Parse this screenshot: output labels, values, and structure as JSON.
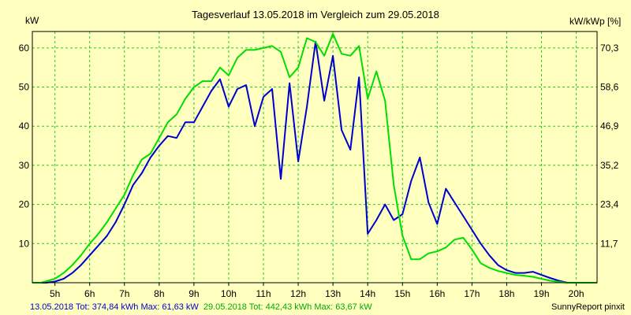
{
  "chart_data": {
    "type": "line",
    "title": "Tagesverlauf 13.05.2018 im Vergleich zum 29.05.2018",
    "ylabel_left": "kW",
    "ylabel_right": "kW/kWp [%]",
    "x_ticks": [
      "5h",
      "6h",
      "7h",
      "8h",
      "9h",
      "10h",
      "11h",
      "12h",
      "13h",
      "14h",
      "15h",
      "16h",
      "17h",
      "18h",
      "19h",
      "20h"
    ],
    "xlim": [
      4.35,
      20.6
    ],
    "ylim": [
      0,
      64.2
    ],
    "y_ticks_left": [
      10,
      20,
      30,
      40,
      50,
      60
    ],
    "y_ticks_right": [
      "11,7",
      "23,4",
      "35,2",
      "46,9",
      "58,6",
      "70,3"
    ],
    "grid": true,
    "series": [
      {
        "name": "13.05.2018",
        "color": "#0000cc",
        "summary": "13.05.2018 Tot: 374,84 kWh Max: 61,63 kW",
        "points": [
          [
            4.35,
            0
          ],
          [
            4.75,
            0
          ],
          [
            5.0,
            0.3
          ],
          [
            5.25,
            1.0
          ],
          [
            5.5,
            2.5
          ],
          [
            5.75,
            4.5
          ],
          [
            6.0,
            7.0
          ],
          [
            6.25,
            9.5
          ],
          [
            6.5,
            12.0
          ],
          [
            6.75,
            15.5
          ],
          [
            7.0,
            20.0
          ],
          [
            7.25,
            25.0
          ],
          [
            7.5,
            28.0
          ],
          [
            7.75,
            32.0
          ],
          [
            8.0,
            35.0
          ],
          [
            8.25,
            37.5
          ],
          [
            8.5,
            37.0
          ],
          [
            8.75,
            41.0
          ],
          [
            9.0,
            41.0
          ],
          [
            9.25,
            45.0
          ],
          [
            9.5,
            49.0
          ],
          [
            9.75,
            52.0
          ],
          [
            10.0,
            45.0
          ],
          [
            10.25,
            49.5
          ],
          [
            10.5,
            50.5
          ],
          [
            10.75,
            40.0
          ],
          [
            11.0,
            47.5
          ],
          [
            11.25,
            49.5
          ],
          [
            11.5,
            26.5
          ],
          [
            11.75,
            51.0
          ],
          [
            12.0,
            31.0
          ],
          [
            12.25,
            45.0
          ],
          [
            12.5,
            61.6
          ],
          [
            12.75,
            46.5
          ],
          [
            13.0,
            58.0
          ],
          [
            13.25,
            39.0
          ],
          [
            13.5,
            34.0
          ],
          [
            13.75,
            52.5
          ],
          [
            14.0,
            12.5
          ],
          [
            14.25,
            16.0
          ],
          [
            14.5,
            20.0
          ],
          [
            14.75,
            16.0
          ],
          [
            15.0,
            17.5
          ],
          [
            15.25,
            26.0
          ],
          [
            15.5,
            32.0
          ],
          [
            15.75,
            20.5
          ],
          [
            16.0,
            15.0
          ],
          [
            16.25,
            24.0
          ],
          [
            16.5,
            20.5
          ],
          [
            16.75,
            17.0
          ],
          [
            17.0,
            13.5
          ],
          [
            17.25,
            10.0
          ],
          [
            17.5,
            7.0
          ],
          [
            17.75,
            4.5
          ],
          [
            18.0,
            3.2
          ],
          [
            18.25,
            2.5
          ],
          [
            18.5,
            2.5
          ],
          [
            18.75,
            2.8
          ],
          [
            19.0,
            2.0
          ],
          [
            19.25,
            1.2
          ],
          [
            19.5,
            0.5
          ],
          [
            19.75,
            0
          ],
          [
            20.6,
            0
          ]
        ]
      },
      {
        "name": "29.05.2018",
        "color": "#00dd00",
        "summary": "29.05.2018 Tot: 442,43 kWh Max: 63,67 kW",
        "points": [
          [
            4.35,
            0
          ],
          [
            4.6,
            0
          ],
          [
            5.0,
            1.0
          ],
          [
            5.25,
            2.5
          ],
          [
            5.5,
            4.5
          ],
          [
            5.75,
            7.0
          ],
          [
            6.0,
            10.0
          ],
          [
            6.25,
            12.5
          ],
          [
            6.5,
            15.5
          ],
          [
            6.75,
            19.0
          ],
          [
            7.0,
            22.5
          ],
          [
            7.25,
            27.5
          ],
          [
            7.5,
            31.5
          ],
          [
            7.75,
            33.0
          ],
          [
            8.0,
            37.0
          ],
          [
            8.25,
            41.0
          ],
          [
            8.5,
            43.0
          ],
          [
            8.75,
            47.0
          ],
          [
            9.0,
            50.0
          ],
          [
            9.25,
            51.5
          ],
          [
            9.5,
            51.5
          ],
          [
            9.75,
            55.0
          ],
          [
            10.0,
            53.0
          ],
          [
            10.25,
            57.5
          ],
          [
            10.5,
            59.5
          ],
          [
            10.75,
            59.5
          ],
          [
            11.0,
            60.0
          ],
          [
            11.25,
            60.5
          ],
          [
            11.5,
            59.0
          ],
          [
            11.75,
            52.5
          ],
          [
            12.0,
            55.0
          ],
          [
            12.25,
            62.5
          ],
          [
            12.5,
            61.5
          ],
          [
            12.75,
            58.0
          ],
          [
            13.0,
            63.6
          ],
          [
            13.25,
            58.5
          ],
          [
            13.5,
            58.0
          ],
          [
            13.75,
            60.5
          ],
          [
            14.0,
            47.0
          ],
          [
            14.25,
            54.0
          ],
          [
            14.5,
            46.5
          ],
          [
            14.75,
            25.0
          ],
          [
            15.0,
            12.0
          ],
          [
            15.25,
            6.0
          ],
          [
            15.5,
            6.0
          ],
          [
            15.75,
            7.5
          ],
          [
            16.0,
            8.0
          ],
          [
            16.25,
            9.0
          ],
          [
            16.5,
            11.0
          ],
          [
            16.75,
            11.5
          ],
          [
            17.0,
            8.5
          ],
          [
            17.25,
            5.0
          ],
          [
            17.5,
            3.8
          ],
          [
            17.75,
            3.0
          ],
          [
            18.0,
            2.5
          ],
          [
            18.25,
            2.0
          ],
          [
            18.5,
            1.8
          ],
          [
            18.75,
            1.5
          ],
          [
            19.0,
            1.0
          ],
          [
            19.25,
            0.5
          ],
          [
            19.5,
            0.2
          ],
          [
            19.75,
            0
          ],
          [
            20.6,
            0
          ]
        ]
      }
    ]
  },
  "footer": {
    "credit": "SunnyReport pinxit"
  }
}
